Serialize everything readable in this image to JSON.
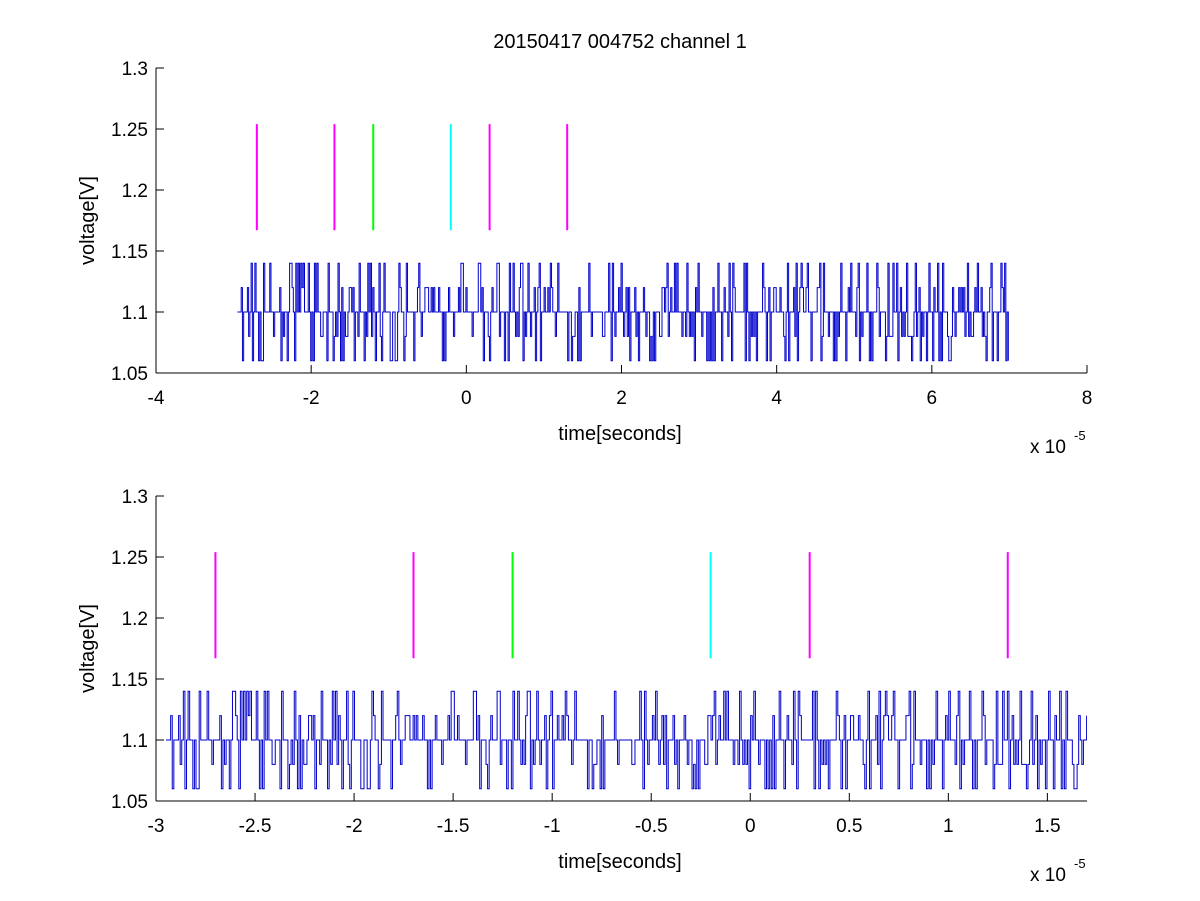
{
  "chart_data": [
    {
      "type": "line",
      "title": "20150417 004752 channel 1",
      "xlabel": "time[seconds]",
      "ylabel": "voltage[V]",
      "x_exponent_label": "x 10",
      "x_exponent": "-5",
      "xlim": [
        -4e-05,
        8e-05
      ],
      "ylim": [
        1.05,
        1.3
      ],
      "xticks": [
        -4e-05,
        -2e-05,
        0,
        2e-05,
        4e-05,
        6e-05,
        8e-05
      ],
      "xtick_labels": [
        "-4",
        "-2",
        "0",
        "2",
        "4",
        "6",
        "8"
      ],
      "yticks": [
        1.05,
        1.1,
        1.15,
        1.2,
        1.25,
        1.3
      ],
      "ytick_labels": [
        "1.05",
        "1.1",
        "1.15",
        "1.2",
        "1.25",
        "1.3"
      ],
      "grid": false,
      "signal": {
        "color": "#0000cc",
        "x_start": -2.95e-05,
        "x_end": 7e-05,
        "baseline": 1.1,
        "high": 1.14,
        "low": 1.06,
        "levels": [
          1.06,
          1.08,
          1.1,
          1.12,
          1.14
        ]
      },
      "markers": [
        {
          "x": -2.7e-05,
          "y_bottom": 1.167,
          "y_top": 1.254,
          "color": "#ff00ff"
        },
        {
          "x": -1.7e-05,
          "y_bottom": 1.167,
          "y_top": 1.254,
          "color": "#ff00ff"
        },
        {
          "x": -1.2e-05,
          "y_bottom": 1.167,
          "y_top": 1.254,
          "color": "#00ff00"
        },
        {
          "x": -2e-06,
          "y_bottom": 1.167,
          "y_top": 1.254,
          "color": "#00ffff"
        },
        {
          "x": 3e-06,
          "y_bottom": 1.167,
          "y_top": 1.254,
          "color": "#ff00ff"
        },
        {
          "x": 1.3e-05,
          "y_bottom": 1.167,
          "y_top": 1.254,
          "color": "#ff00ff"
        }
      ]
    },
    {
      "type": "line",
      "title": "",
      "xlabel": "time[seconds]",
      "ylabel": "voltage[V]",
      "x_exponent_label": "x 10",
      "x_exponent": "-5",
      "xlim": [
        -3e-05,
        1.7e-05
      ],
      "ylim": [
        1.05,
        1.3
      ],
      "xticks": [
        -3e-05,
        -2.5e-05,
        -2e-05,
        -1.5e-05,
        -1e-05,
        -5e-06,
        0,
        5e-06,
        1e-05,
        1.5e-05
      ],
      "xtick_labels": [
        "-3",
        "-2.5",
        "-2",
        "-1.5",
        "-1",
        "-0.5",
        "0",
        "0.5",
        "1",
        "1.5"
      ],
      "yticks": [
        1.05,
        1.1,
        1.15,
        1.2,
        1.25,
        1.3
      ],
      "ytick_labels": [
        "1.05",
        "1.1",
        "1.15",
        "1.2",
        "1.25",
        "1.3"
      ],
      "grid": false,
      "signal": {
        "color": "#0000cc",
        "x_start": -2.95e-05,
        "x_end": 1.7e-05,
        "baseline": 1.1,
        "high": 1.14,
        "low": 1.06,
        "levels": [
          1.06,
          1.08,
          1.1,
          1.12,
          1.14
        ]
      },
      "markers": [
        {
          "x": -2.7e-05,
          "y_bottom": 1.167,
          "y_top": 1.254,
          "color": "#ff00ff"
        },
        {
          "x": -1.7e-05,
          "y_bottom": 1.167,
          "y_top": 1.254,
          "color": "#ff00ff"
        },
        {
          "x": -1.2e-05,
          "y_bottom": 1.167,
          "y_top": 1.254,
          "color": "#00ff00"
        },
        {
          "x": -2e-06,
          "y_bottom": 1.167,
          "y_top": 1.254,
          "color": "#00ffff"
        },
        {
          "x": 3e-06,
          "y_bottom": 1.167,
          "y_top": 1.254,
          "color": "#ff00ff"
        },
        {
          "x": 1.3e-05,
          "y_bottom": 1.167,
          "y_top": 1.254,
          "color": "#ff00ff"
        }
      ]
    }
  ]
}
